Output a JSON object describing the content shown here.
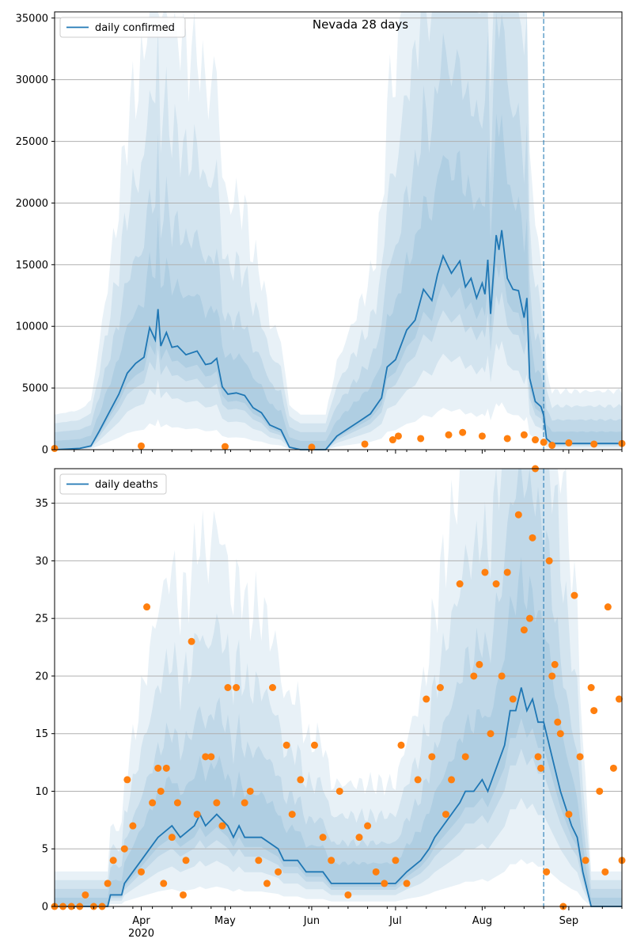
{
  "colors": {
    "line": "#1f77b4",
    "points": "#ff7f0e",
    "band": "#1f77b4",
    "grid": "#b0b0b0"
  },
  "chart_data": [
    {
      "type": "line",
      "title": "Nevada 28 days",
      "legend": {
        "label": "daily confirmed",
        "placement": "top-left"
      },
      "x_axis": {
        "start": "2020-03-01",
        "end": "2020-09-20",
        "month_ticks": [
          "Apr",
          "May",
          "Jun",
          "Jul",
          "Aug",
          "Sep"
        ],
        "year_label": "2020"
      },
      "ylim": [
        0,
        35500
      ],
      "yticks": [
        0,
        5000,
        10000,
        15000,
        20000,
        25000,
        30000,
        35000
      ],
      "grid": "horizontal",
      "forecast_start": "2020-08-23",
      "series": [
        {
          "name": "daily confirmed",
          "type": "line",
          "points": [
            [
              "2020-03-01",
              0
            ],
            [
              "2020-03-10",
              100
            ],
            [
              "2020-03-14",
              300
            ],
            [
              "2020-03-17",
              1500
            ],
            [
              "2020-03-20",
              2800
            ],
            [
              "2020-03-24",
              4500
            ],
            [
              "2020-03-27",
              6200
            ],
            [
              "2020-03-30",
              7000
            ],
            [
              "2020-04-02",
              7500
            ],
            [
              "2020-04-04",
              9900
            ],
            [
              "2020-04-06",
              8900
            ],
            [
              "2020-04-07",
              11400
            ],
            [
              "2020-04-08",
              8400
            ],
            [
              "2020-04-10",
              9500
            ],
            [
              "2020-04-12",
              8300
            ],
            [
              "2020-04-14",
              8400
            ],
            [
              "2020-04-17",
              7700
            ],
            [
              "2020-04-21",
              8000
            ],
            [
              "2020-04-24",
              6900
            ],
            [
              "2020-04-26",
              7000
            ],
            [
              "2020-04-28",
              7400
            ],
            [
              "2020-04-30",
              5100
            ],
            [
              "2020-05-02",
              4500
            ],
            [
              "2020-05-05",
              4600
            ],
            [
              "2020-05-08",
              4400
            ],
            [
              "2020-05-11",
              3400
            ],
            [
              "2020-05-14",
              3000
            ],
            [
              "2020-05-17",
              2000
            ],
            [
              "2020-05-21",
              1600
            ],
            [
              "2020-05-24",
              200
            ],
            [
              "2020-05-28",
              0
            ],
            [
              "2020-06-06",
              0
            ],
            [
              "2020-06-10",
              1100
            ],
            [
              "2020-06-14",
              1700
            ],
            [
              "2020-06-18",
              2300
            ],
            [
              "2020-06-22",
              2900
            ],
            [
              "2020-06-26",
              4200
            ],
            [
              "2020-06-28",
              6700
            ],
            [
              "2020-07-01",
              7300
            ],
            [
              "2020-07-05",
              9700
            ],
            [
              "2020-07-08",
              10500
            ],
            [
              "2020-07-11",
              13000
            ],
            [
              "2020-07-14",
              12100
            ],
            [
              "2020-07-16",
              14200
            ],
            [
              "2020-07-18",
              15700
            ],
            [
              "2020-07-21",
              14300
            ],
            [
              "2020-07-24",
              15300
            ],
            [
              "2020-07-26",
              13200
            ],
            [
              "2020-07-28",
              13900
            ],
            [
              "2020-07-30",
              12300
            ],
            [
              "2020-08-01",
              13500
            ],
            [
              "2020-08-02",
              12600
            ],
            [
              "2020-08-03",
              15400
            ],
            [
              "2020-08-04",
              11000
            ],
            [
              "2020-08-06",
              17400
            ],
            [
              "2020-08-07",
              16200
            ],
            [
              "2020-08-08",
              17800
            ],
            [
              "2020-08-10",
              13900
            ],
            [
              "2020-08-12",
              13000
            ],
            [
              "2020-08-14",
              12900
            ],
            [
              "2020-08-16",
              10700
            ],
            [
              "2020-08-17",
              12300
            ],
            [
              "2020-08-18",
              5800
            ],
            [
              "2020-08-20",
              3900
            ],
            [
              "2020-08-22",
              3500
            ],
            [
              "2020-08-23",
              2800
            ],
            [
              "2020-08-24",
              900
            ],
            [
              "2020-08-26",
              500
            ],
            [
              "2020-09-20",
              500
            ]
          ]
        },
        {
          "name": "observed confirmed",
          "type": "scatter",
          "points": [
            [
              "2020-03-01",
              100
            ],
            [
              "2020-04-01",
              300
            ],
            [
              "2020-05-01",
              250
            ],
            [
              "2020-06-01",
              200
            ],
            [
              "2020-06-20",
              450
            ],
            [
              "2020-06-30",
              800
            ],
            [
              "2020-07-02",
              1100
            ],
            [
              "2020-07-10",
              900
            ],
            [
              "2020-07-20",
              1200
            ],
            [
              "2020-07-25",
              1400
            ],
            [
              "2020-08-01",
              1100
            ],
            [
              "2020-08-10",
              900
            ],
            [
              "2020-08-16",
              1200
            ],
            [
              "2020-08-20",
              800
            ],
            [
              "2020-08-23",
              600
            ],
            [
              "2020-08-26",
              350
            ],
            [
              "2020-09-01",
              550
            ],
            [
              "2020-09-10",
              450
            ],
            [
              "2020-09-20",
              500
            ]
          ]
        }
      ]
    },
    {
      "type": "line",
      "title": "",
      "legend": {
        "label": "daily deaths",
        "placement": "top-left"
      },
      "x_axis": {
        "start": "2020-03-01",
        "end": "2020-09-20",
        "month_ticks": [
          "Apr",
          "May",
          "Jun",
          "Jul",
          "Aug",
          "Sep"
        ],
        "year_label": "2020"
      },
      "ylim": [
        0,
        38
      ],
      "yticks": [
        0,
        5,
        10,
        15,
        20,
        25,
        30,
        35
      ],
      "grid": "horizontal",
      "forecast_start": "2020-08-23",
      "series": [
        {
          "name": "daily deaths",
          "type": "line",
          "points": [
            [
              "2020-03-01",
              0
            ],
            [
              "2020-03-20",
              0
            ],
            [
              "2020-03-21",
              1
            ],
            [
              "2020-03-25",
              1
            ],
            [
              "2020-03-26",
              2
            ],
            [
              "2020-03-29",
              3
            ],
            [
              "2020-04-01",
              4
            ],
            [
              "2020-04-04",
              5
            ],
            [
              "2020-04-07",
              6
            ],
            [
              "2020-04-12",
              7
            ],
            [
              "2020-04-15",
              6
            ],
            [
              "2020-04-20",
              7
            ],
            [
              "2020-04-22",
              8
            ],
            [
              "2020-04-24",
              7
            ],
            [
              "2020-04-28",
              8
            ],
            [
              "2020-05-02",
              7
            ],
            [
              "2020-05-04",
              6
            ],
            [
              "2020-05-06",
              7
            ],
            [
              "2020-05-08",
              6
            ],
            [
              "2020-05-14",
              6
            ],
            [
              "2020-05-20",
              5
            ],
            [
              "2020-05-22",
              4
            ],
            [
              "2020-05-27",
              4
            ],
            [
              "2020-05-30",
              3
            ],
            [
              "2020-06-05",
              3
            ],
            [
              "2020-06-08",
              2
            ],
            [
              "2020-06-18",
              2
            ],
            [
              "2020-06-28",
              2
            ],
            [
              "2020-07-01",
              2
            ],
            [
              "2020-07-05",
              3
            ],
            [
              "2020-07-10",
              4
            ],
            [
              "2020-07-13",
              5
            ],
            [
              "2020-07-15",
              6
            ],
            [
              "2020-07-18",
              7
            ],
            [
              "2020-07-21",
              8
            ],
            [
              "2020-07-24",
              9
            ],
            [
              "2020-07-26",
              10
            ],
            [
              "2020-07-29",
              10
            ],
            [
              "2020-08-01",
              11
            ],
            [
              "2020-08-03",
              10
            ],
            [
              "2020-08-06",
              12
            ],
            [
              "2020-08-09",
              14
            ],
            [
              "2020-08-11",
              17
            ],
            [
              "2020-08-13",
              17
            ],
            [
              "2020-08-15",
              19
            ],
            [
              "2020-08-17",
              17
            ],
            [
              "2020-08-19",
              18
            ],
            [
              "2020-08-21",
              16
            ],
            [
              "2020-08-23",
              16
            ],
            [
              "2020-08-24",
              15
            ],
            [
              "2020-08-27",
              12
            ],
            [
              "2020-08-29",
              10
            ],
            [
              "2020-09-02",
              7
            ],
            [
              "2020-09-04",
              6
            ],
            [
              "2020-09-06",
              3
            ],
            [
              "2020-09-09",
              0
            ],
            [
              "2020-09-20",
              0
            ]
          ]
        },
        {
          "name": "observed deaths",
          "type": "scatter",
          "points": [
            [
              "2020-03-01",
              0
            ],
            [
              "2020-03-04",
              0
            ],
            [
              "2020-03-07",
              0
            ],
            [
              "2020-03-10",
              0
            ],
            [
              "2020-03-12",
              1
            ],
            [
              "2020-03-15",
              0
            ],
            [
              "2020-03-18",
              0
            ],
            [
              "2020-03-20",
              2
            ],
            [
              "2020-03-22",
              4
            ],
            [
              "2020-03-26",
              5
            ],
            [
              "2020-03-27",
              11
            ],
            [
              "2020-03-29",
              7
            ],
            [
              "2020-04-01",
              3
            ],
            [
              "2020-04-03",
              26
            ],
            [
              "2020-04-05",
              9
            ],
            [
              "2020-04-07",
              12
            ],
            [
              "2020-04-08",
              10
            ],
            [
              "2020-04-09",
              2
            ],
            [
              "2020-04-10",
              12
            ],
            [
              "2020-04-12",
              6
            ],
            [
              "2020-04-14",
              9
            ],
            [
              "2020-04-16",
              1
            ],
            [
              "2020-04-17",
              4
            ],
            [
              "2020-04-19",
              23
            ],
            [
              "2020-04-21",
              8
            ],
            [
              "2020-04-24",
              13
            ],
            [
              "2020-04-26",
              13
            ],
            [
              "2020-04-28",
              9
            ],
            [
              "2020-04-30",
              7
            ],
            [
              "2020-05-02",
              19
            ],
            [
              "2020-05-05",
              19
            ],
            [
              "2020-05-08",
              9
            ],
            [
              "2020-05-10",
              10
            ],
            [
              "2020-05-13",
              4
            ],
            [
              "2020-05-16",
              2
            ],
            [
              "2020-05-18",
              19
            ],
            [
              "2020-05-20",
              3
            ],
            [
              "2020-05-23",
              14
            ],
            [
              "2020-05-25",
              8
            ],
            [
              "2020-05-28",
              11
            ],
            [
              "2020-06-02",
              14
            ],
            [
              "2020-06-05",
              6
            ],
            [
              "2020-06-08",
              4
            ],
            [
              "2020-06-11",
              10
            ],
            [
              "2020-06-14",
              1
            ],
            [
              "2020-06-18",
              6
            ],
            [
              "2020-06-21",
              7
            ],
            [
              "2020-06-24",
              3
            ],
            [
              "2020-06-27",
              2
            ],
            [
              "2020-07-01",
              4
            ],
            [
              "2020-07-03",
              14
            ],
            [
              "2020-07-05",
              2
            ],
            [
              "2020-07-09",
              11
            ],
            [
              "2020-07-12",
              18
            ],
            [
              "2020-07-14",
              13
            ],
            [
              "2020-07-17",
              19
            ],
            [
              "2020-07-19",
              8
            ],
            [
              "2020-07-21",
              11
            ],
            [
              "2020-07-24",
              28
            ],
            [
              "2020-07-26",
              13
            ],
            [
              "2020-07-29",
              20
            ],
            [
              "2020-07-31",
              21
            ],
            [
              "2020-08-02",
              29
            ],
            [
              "2020-08-04",
              15
            ],
            [
              "2020-08-06",
              28
            ],
            [
              "2020-08-08",
              20
            ],
            [
              "2020-08-10",
              29
            ],
            [
              "2020-08-12",
              18
            ],
            [
              "2020-08-14",
              34
            ],
            [
              "2020-08-16",
              24
            ],
            [
              "2020-08-18",
              25
            ],
            [
              "2020-08-19",
              32
            ],
            [
              "2020-08-20",
              38
            ],
            [
              "2020-08-21",
              13
            ],
            [
              "2020-08-22",
              12
            ],
            [
              "2020-08-24",
              3
            ],
            [
              "2020-08-25",
              30
            ],
            [
              "2020-08-26",
              20
            ],
            [
              "2020-08-27",
              21
            ],
            [
              "2020-08-28",
              16
            ],
            [
              "2020-08-29",
              15
            ],
            [
              "2020-08-30",
              0
            ],
            [
              "2020-09-01",
              8
            ],
            [
              "2020-09-03",
              27
            ],
            [
              "2020-09-05",
              13
            ],
            [
              "2020-09-07",
              4
            ],
            [
              "2020-09-09",
              19
            ],
            [
              "2020-09-10",
              17
            ],
            [
              "2020-09-12",
              10
            ],
            [
              "2020-09-14",
              3
            ],
            [
              "2020-09-15",
              26
            ],
            [
              "2020-09-17",
              12
            ],
            [
              "2020-09-19",
              18
            ],
            [
              "2020-09-20",
              4
            ]
          ]
        }
      ]
    }
  ]
}
